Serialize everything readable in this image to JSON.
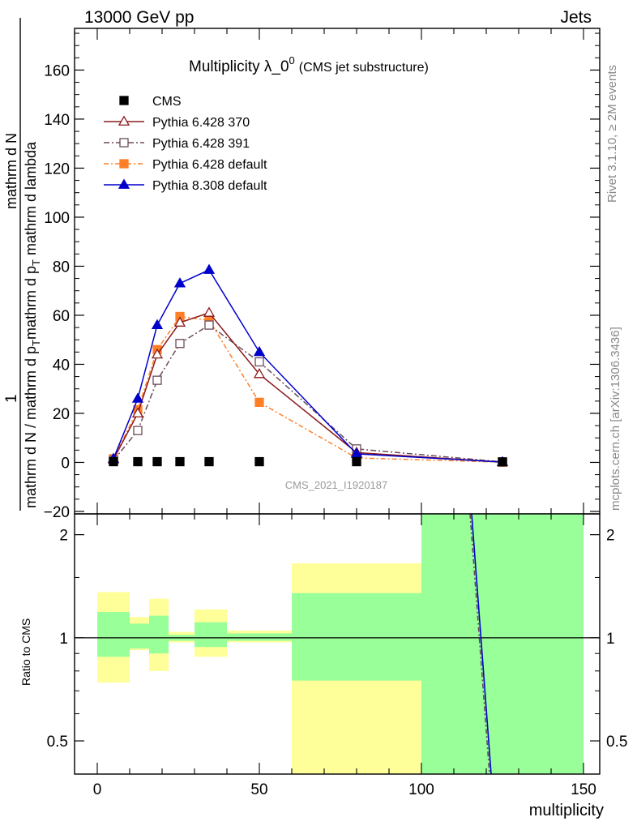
{
  "header": {
    "left": "13000 GeV pp",
    "right": "Jets"
  },
  "plot_title": {
    "main": "Multiplicity λ_0",
    "superscript": "0",
    "sub": "(CMS jet substructure)"
  },
  "side_labels": {
    "rivet": "Rivet 3.1.10, ≥ 2M events",
    "mcplots": "mcplots.cern.ch [arXiv:1306.3436]"
  },
  "watermark": "CMS_2021_I1920187",
  "ylabel_main": {
    "numerator": "1",
    "frac_top_a": "mathrm d",
    "frac_top_b": "N",
    "frac_bottom_a": "mathrm d N / mathrm d p",
    "frac_bottom_b": "T",
    "frac_bottom_c": "mathrm d p",
    "frac_bottom_d": "T",
    "frac_bottom_e": "mathrm d lambda"
  },
  "ylabel_ratio": "Ratio to CMS",
  "xlabel": "multiplicity",
  "colors": {
    "cms": "#000000",
    "p370": "#8b1a1a",
    "p391": "#6b4a5a",
    "p6def": "#ff7f27",
    "p8def": "#0000cc",
    "band_outer": "#ffff99",
    "band_inner": "#99ff99"
  },
  "chart_data": {
    "type": "scatter",
    "title": "Multiplicity λ_0^0 (CMS jet substructure)",
    "xlabel": "multiplicity",
    "ylabel": "1/mathrm dN / mathrm d p_T mathrm d lambda",
    "xlim": [
      -7,
      155
    ],
    "ylim": [
      -21,
      177
    ],
    "ratio_ylim": [
      0.4,
      2.3
    ],
    "ratio_scale": "log",
    "x_ticks": [
      0,
      50,
      100,
      150
    ],
    "y_ticks": [
      -20,
      0,
      20,
      40,
      60,
      80,
      100,
      120,
      140,
      160
    ],
    "ratio_ticks": [
      0.5,
      1,
      2
    ],
    "legend_position": "top-left",
    "series": [
      {
        "name": "CMS",
        "marker": "square",
        "x": [
          5,
          12.5,
          18.5,
          25.5,
          34.5,
          50,
          80,
          125
        ],
        "y": [
          0.3,
          0.3,
          0.3,
          0.3,
          0.3,
          0.3,
          0.3,
          0.2
        ]
      },
      {
        "name": "Pythia 6.428 370",
        "marker": "open-triangle",
        "x": [
          5,
          12.5,
          18.5,
          25.5,
          34.5,
          50,
          80,
          125
        ],
        "y": [
          1.2,
          20,
          44,
          57,
          61,
          36,
          4,
          0.1
        ]
      },
      {
        "name": "Pythia 6.428 391",
        "marker": "open-square",
        "x": [
          5,
          12.5,
          18.5,
          25.5,
          34.5,
          50,
          80,
          125
        ],
        "y": [
          0.8,
          13,
          33.5,
          48.5,
          56,
          41,
          5.5,
          0.2
        ]
      },
      {
        "name": "Pythia 6.428 default",
        "marker": "square",
        "x": [
          5,
          12.5,
          18.5,
          25.5,
          34.5,
          50,
          80,
          125
        ],
        "y": [
          1.5,
          21.5,
          46,
          59.5,
          58,
          24.5,
          1.8,
          0.1
        ]
      },
      {
        "name": "Pythia 8.308 default",
        "marker": "triangle",
        "x": [
          5,
          12.5,
          18.5,
          25.5,
          34.5,
          50,
          80,
          125
        ],
        "y": [
          1.5,
          26,
          56,
          73,
          78.5,
          45,
          3.5,
          0.1
        ]
      }
    ],
    "ratio_bands": {
      "bins": [
        [
          0,
          10
        ],
        [
          10,
          16
        ],
        [
          16,
          22
        ],
        [
          22,
          30
        ],
        [
          30,
          40
        ],
        [
          40,
          60
        ],
        [
          60,
          100
        ],
        [
          100,
          150
        ]
      ],
      "outer_low": [
        0.74,
        0.92,
        0.8,
        0.97,
        0.88,
        0.97,
        0.4,
        0.4
      ],
      "outer_high": [
        1.36,
        1.15,
        1.3,
        1.04,
        1.21,
        1.05,
        1.65,
        2.3
      ],
      "inner_low": [
        0.88,
        0.93,
        0.9,
        0.98,
        0.94,
        0.98,
        0.75,
        0.4
      ],
      "inner_high": [
        1.19,
        1.1,
        1.16,
        1.02,
        1.11,
        1.03,
        1.35,
        2.3
      ]
    },
    "ratio_curves": [
      {
        "series": "Pythia 6.428 391",
        "x": [
          115,
          121
        ],
        "y": [
          2.3,
          0.4
        ]
      },
      {
        "series": "Pythia 8.308 default",
        "x": [
          115.5,
          121.5
        ],
        "y": [
          2.3,
          0.4
        ]
      }
    ]
  }
}
